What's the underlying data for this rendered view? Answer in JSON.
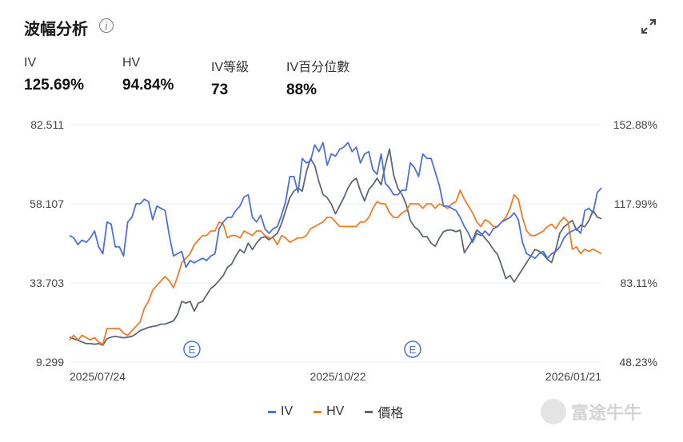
{
  "header": {
    "title": "波幅分析",
    "info_icon": "info-icon",
    "expand_icon": "expand-icon"
  },
  "metrics": [
    {
      "label": "IV",
      "value": "125.69%"
    },
    {
      "label": "HV",
      "value": "94.84%"
    },
    {
      "label": "IV等級",
      "value": "73"
    },
    {
      "label": "IV百分位數",
      "value": "88%"
    }
  ],
  "legend": [
    {
      "name": "IV",
      "color": "#4f6fdc"
    },
    {
      "name": "HV",
      "color": "#ef7c2a"
    },
    {
      "name": "價格",
      "color": "#5f6673"
    }
  ],
  "watermark": "富途牛牛",
  "chart_data": {
    "type": "line",
    "x_tick_labels": [
      "2025/07/24",
      "2025/10/22",
      "2026/01/21"
    ],
    "y_left": {
      "ticks": [
        "82.511",
        "58.107",
        "33.703",
        "9.299"
      ],
      "range": [
        9.299,
        82.511
      ]
    },
    "y_right": {
      "ticks": [
        "152.88%",
        "117.99%",
        "83.11%",
        "48.23%"
      ],
      "range": [
        48.23,
        152.88
      ]
    },
    "earnings_marker_label": "E",
    "earnings_markers": [
      0.23,
      0.645
    ],
    "grid": true,
    "legend_position": "bottom",
    "series": [
      {
        "name": "IV",
        "color": "#4f6fdc",
        "axis": "right",
        "values": [
          104,
          103,
          100,
          102,
          101,
          103,
          106,
          99,
          96,
          110,
          109,
          99,
          99,
          95,
          110,
          112,
          118,
          118,
          120,
          119,
          111,
          117,
          116,
          115,
          104,
          95,
          96,
          97,
          90,
          93,
          92,
          93,
          94,
          93,
          95,
          96,
          107,
          110,
          112,
          112,
          115,
          117,
          121,
          122,
          112,
          110,
          113,
          107,
          105,
          107,
          108,
          113,
          119,
          130,
          130,
          123,
          138,
          136,
          137,
          144,
          141,
          145,
          135,
          140,
          139,
          142,
          143,
          145,
          141,
          143,
          136,
          140,
          141,
          133,
          131,
          140,
          127,
          125,
          122,
          122,
          124,
          124,
          136,
          134,
          130,
          140,
          138,
          138,
          132,
          126,
          117,
          117,
          116,
          115,
          112,
          108,
          105,
          101,
          105,
          104,
          106,
          104,
          107,
          108,
          110,
          111,
          112,
          114,
          111,
          101,
          96,
          95,
          94,
          96,
          97,
          94,
          96,
          97,
          99,
          103,
          105,
          106,
          107,
          105,
          115,
          116,
          114,
          123,
          125
        ]
      },
      {
        "name": "HV",
        "color": "#ef7c2a",
        "axis": "right",
        "values": [
          58,
          60,
          58,
          60,
          59,
          58,
          59,
          57,
          56,
          63,
          63,
          63,
          63,
          61,
          60,
          62,
          64,
          66,
          72,
          75,
          80,
          82,
          84,
          86,
          84,
          81,
          86,
          92,
          94,
          96,
          100,
          102,
          104,
          104,
          106,
          106,
          110,
          109,
          103,
          104,
          104,
          103,
          106,
          105,
          104,
          106,
          106,
          104,
          103,
          103,
          100,
          104,
          103,
          101,
          102,
          103,
          103,
          104,
          107,
          108,
          109,
          110,
          112,
          112,
          110,
          108,
          108,
          108,
          108,
          108,
          110,
          110,
          112,
          116,
          119,
          118,
          118,
          114,
          112,
          112,
          114,
          115,
          118,
          118,
          118,
          116,
          118,
          118,
          116,
          118,
          117,
          116,
          118,
          119,
          124,
          120,
          117,
          114,
          110,
          108,
          111,
          110,
          108,
          108,
          110,
          112,
          116,
          122,
          120,
          112,
          106,
          104,
          104,
          105,
          106,
          108,
          109,
          107,
          110,
          112,
          110,
          98,
          99,
          96,
          98,
          97,
          98,
          97,
          96
        ]
      },
      {
        "name": "價格",
        "color": "#5f6673",
        "axis": "left",
        "values": [
          17.0,
          16.5,
          16.0,
          15.5,
          15.0,
          15.0,
          14.8,
          15.0,
          14.5,
          16.5,
          17.0,
          17.2,
          17.0,
          16.8,
          17.0,
          17.2,
          18.0,
          19.0,
          19.5,
          20.0,
          20.3,
          20.5,
          21.0,
          21.0,
          21.5,
          22.0,
          24.0,
          28.0,
          27.5,
          28.0,
          25.0,
          27.5,
          28.0,
          30.0,
          32.0,
          33.0,
          34.5,
          36.0,
          38.5,
          39.5,
          42.0,
          44.0,
          43.0,
          46.0,
          44.0,
          46.0,
          47.5,
          48.0,
          47.0,
          48.0,
          49.0,
          52.0,
          56.0,
          60.0,
          62.0,
          63.0,
          62.0,
          68.0,
          72.0,
          70.0,
          65.0,
          61.0,
          60.0,
          58.0,
          55.0,
          57.5,
          60.0,
          63.0,
          65.0,
          66.0,
          62.0,
          59.0,
          62.5,
          64.0,
          66.0,
          64.0,
          70.0,
          75.0,
          67.0,
          63.0,
          61.0,
          58.0,
          53.0,
          51.0,
          50.0,
          48.0,
          48.0,
          46.0,
          45.0,
          47.5,
          49.5,
          50.0,
          50.0,
          49.5,
          50.0,
          43.0,
          45.0,
          47.0,
          50.0,
          49.0,
          47.5,
          46.0,
          44.0,
          42.5,
          39.0,
          35.0,
          36.0,
          34.0,
          36.0,
          38.0,
          40.0,
          42.0,
          44.0,
          43.5,
          42.5,
          41.0,
          40.0,
          44.0,
          49.0,
          51.0,
          52.0,
          53.0,
          50.0,
          51.5,
          51.0,
          53.0,
          56.0,
          54.0,
          53.5
        ]
      }
    ]
  }
}
